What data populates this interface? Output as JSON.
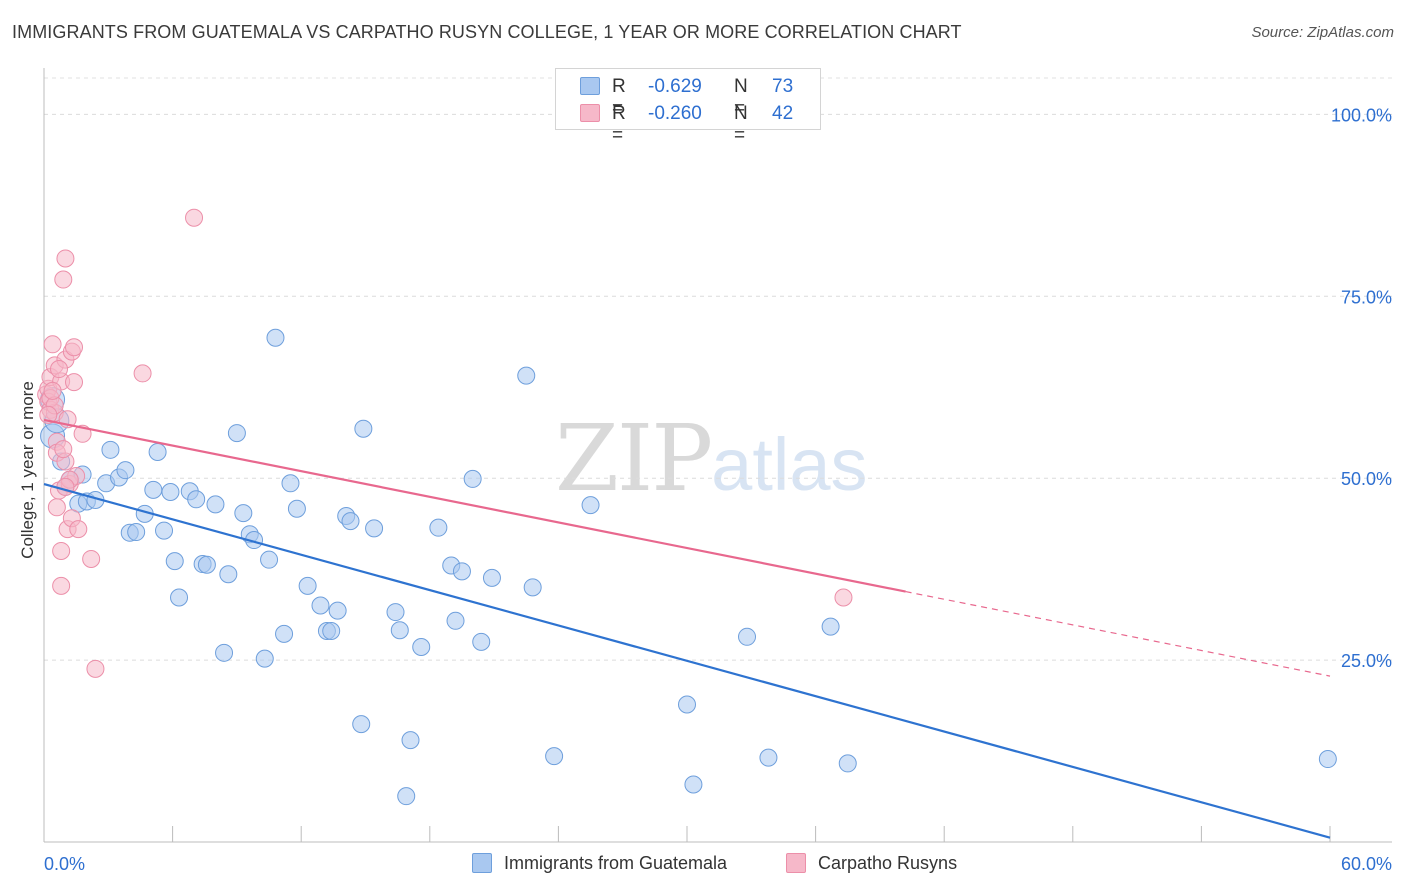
{
  "header": {
    "title": "IMMIGRANTS FROM GUATEMALA VS CARPATHO RUSYN COLLEGE, 1 YEAR OR MORE CORRELATION CHART",
    "source": "Source: ZipAtlas.com"
  },
  "watermark": {
    "zip": "ZIP",
    "atlas": "atlas"
  },
  "stats": [
    {
      "r_label": "R =",
      "r_value": "-0.629",
      "n_label": "N =",
      "n_value": "73",
      "color": "#a9c8f0"
    },
    {
      "r_label": "R =",
      "r_value": "-0.260",
      "n_label": "N =",
      "n_value": "42",
      "color": "#f6b8c9"
    }
  ],
  "legend": {
    "guatemala": "Immigrants from Guatemala",
    "rusyn": "Carpatho Rusyns"
  },
  "chart_data": {
    "type": "scatter",
    "title": "IMMIGRANTS FROM GUATEMALA VS CARPATHO RUSYN COLLEGE, 1 YEAR OR MORE CORRELATION CHART",
    "xlabel": "",
    "ylabel": "College, 1 year or more",
    "xlim": [
      0,
      60
    ],
    "ylim": [
      0,
      105
    ],
    "x_tick_labels": [
      "0.0%",
      "60.0%"
    ],
    "y_ticks": [
      25,
      50,
      75,
      100
    ],
    "y_tick_labels": [
      "25.0%",
      "50.0%",
      "75.0%",
      "100.0%"
    ],
    "grid": true,
    "legend_position": "bottom-center",
    "series": [
      {
        "name": "Immigrants from Guatemala",
        "color": "#a9c8f0",
        "stroke": "#6e9fdc",
        "line_color": "#2e73d0",
        "trend": {
          "x": [
            0,
            60
          ],
          "y": [
            49.2,
            0.6
          ],
          "dashed_from": null
        },
        "points": [
          [
            0.4,
            60.8
          ],
          [
            0.4,
            55.8
          ],
          [
            0.8,
            52.3
          ],
          [
            1.0,
            48.8
          ],
          [
            1.2,
            49.8
          ],
          [
            1.8,
            50.5
          ],
          [
            1.6,
            46.5
          ],
          [
            2.0,
            46.8
          ],
          [
            2.4,
            47.0
          ],
          [
            3.1,
            53.9
          ],
          [
            2.9,
            49.3
          ],
          [
            3.5,
            50.1
          ],
          [
            3.8,
            51.1
          ],
          [
            4.0,
            42.5
          ],
          [
            4.3,
            42.6
          ],
          [
            4.7,
            45.1
          ],
          [
            5.1,
            48.4
          ],
          [
            5.3,
            53.6
          ],
          [
            5.6,
            42.8
          ],
          [
            5.9,
            48.1
          ],
          [
            6.1,
            38.6
          ],
          [
            6.3,
            33.6
          ],
          [
            6.8,
            48.2
          ],
          [
            7.1,
            47.1
          ],
          [
            7.4,
            38.2
          ],
          [
            7.6,
            38.1
          ],
          [
            8.0,
            46.4
          ],
          [
            8.4,
            26.0
          ],
          [
            8.6,
            36.8
          ],
          [
            9.0,
            56.2
          ],
          [
            9.3,
            45.2
          ],
          [
            9.6,
            42.3
          ],
          [
            9.8,
            41.5
          ],
          [
            10.3,
            25.2
          ],
          [
            10.5,
            38.8
          ],
          [
            10.8,
            69.3
          ],
          [
            11.2,
            28.6
          ],
          [
            11.5,
            49.3
          ],
          [
            11.8,
            45.8
          ],
          [
            12.3,
            35.2
          ],
          [
            12.9,
            32.5
          ],
          [
            13.2,
            29.0
          ],
          [
            13.4,
            29.0
          ],
          [
            13.7,
            31.8
          ],
          [
            14.1,
            44.8
          ],
          [
            14.3,
            44.1
          ],
          [
            14.8,
            16.2
          ],
          [
            14.9,
            56.8
          ],
          [
            15.4,
            43.1
          ],
          [
            16.4,
            31.6
          ],
          [
            16.6,
            29.1
          ],
          [
            16.9,
            6.3
          ],
          [
            17.1,
            14.0
          ],
          [
            17.6,
            26.8
          ],
          [
            18.4,
            43.2
          ],
          [
            19.0,
            38.0
          ],
          [
            19.2,
            30.4
          ],
          [
            19.5,
            37.2
          ],
          [
            20.0,
            49.9
          ],
          [
            20.4,
            27.5
          ],
          [
            20.9,
            36.3
          ],
          [
            22.5,
            64.1
          ],
          [
            22.8,
            35.0
          ],
          [
            23.8,
            11.8
          ],
          [
            25.5,
            46.3
          ],
          [
            30.0,
            18.9
          ],
          [
            30.3,
            7.9
          ],
          [
            32.8,
            28.2
          ],
          [
            33.8,
            11.6
          ],
          [
            36.7,
            29.6
          ],
          [
            37.5,
            10.8
          ],
          [
            59.9,
            11.4
          ],
          [
            0.6,
            57.9
          ]
        ]
      },
      {
        "name": "Carpatho Rusyns",
        "color": "#f6b8c9",
        "stroke": "#ec8fa9",
        "line_color": "#e8688e",
        "trend": {
          "x": [
            0,
            60
          ],
          "y": [
            58.0,
            22.8
          ],
          "dashed_from": 40.2
        },
        "points": [
          [
            0.1,
            61.5
          ],
          [
            0.2,
            62.3
          ],
          [
            0.2,
            60.5
          ],
          [
            0.3,
            63.9
          ],
          [
            0.3,
            59.4
          ],
          [
            0.4,
            68.4
          ],
          [
            0.5,
            65.5
          ],
          [
            0.5,
            59.0
          ],
          [
            0.6,
            55.0
          ],
          [
            0.6,
            53.5
          ],
          [
            0.6,
            46.0
          ],
          [
            0.7,
            48.3
          ],
          [
            0.8,
            63.3
          ],
          [
            0.8,
            40.0
          ],
          [
            0.8,
            35.2
          ],
          [
            0.9,
            77.3
          ],
          [
            1.0,
            80.2
          ],
          [
            1.0,
            66.3
          ],
          [
            1.0,
            52.3
          ],
          [
            1.1,
            58.1
          ],
          [
            1.1,
            43.0
          ],
          [
            1.2,
            49.2
          ],
          [
            1.3,
            67.4
          ],
          [
            1.3,
            44.5
          ],
          [
            1.4,
            68.0
          ],
          [
            1.4,
            63.2
          ],
          [
            1.5,
            50.3
          ],
          [
            1.6,
            43.0
          ],
          [
            1.8,
            56.1
          ],
          [
            2.2,
            38.9
          ],
          [
            2.4,
            23.8
          ],
          [
            4.6,
            64.4
          ],
          [
            7.0,
            85.8
          ],
          [
            37.3,
            33.6
          ],
          [
            0.3,
            61.0
          ],
          [
            0.5,
            60.0
          ],
          [
            0.2,
            58.7
          ],
          [
            0.9,
            54.0
          ],
          [
            1.2,
            49.8
          ],
          [
            0.4,
            62.0
          ],
          [
            0.7,
            65.0
          ],
          [
            1.0,
            48.8
          ]
        ]
      }
    ]
  }
}
